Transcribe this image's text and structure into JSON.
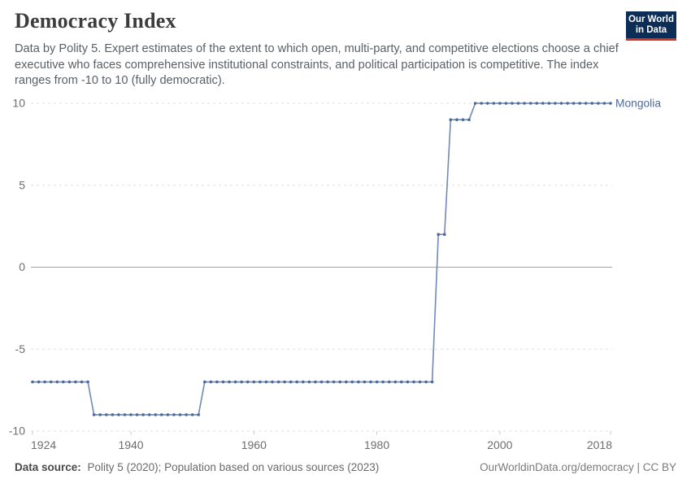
{
  "header": {
    "title": "Democracy Index",
    "subtitle": "Data by Polity 5. Expert estimates of the extent to which open, multi-party, and competitive elections choose a chief executive who faces comprehensive institutional constraints, and political participation is competitive. The index ranges from -10 to 10 (fully democratic).",
    "logo": {
      "line1": "Our World",
      "line2": "in Data"
    }
  },
  "footer": {
    "source_label": "Data source:",
    "source_text": "Polity 5 (2020); Population based on various sources (2023)",
    "credit": "OurWorldinData.org/democracy | CC BY"
  },
  "colors": {
    "series_blue": "#4C6A9C",
    "series_line": "#7189b3",
    "gridline": "#dedede",
    "zero_line": "#a3a3a3",
    "tick_mark": "#c9c9c9",
    "axis_label": "#6e6e6e",
    "logo_navy": "#0c2d55",
    "logo_red": "#d63420"
  },
  "chart_data": {
    "type": "line",
    "title": "Democracy Index",
    "xlabel": "",
    "ylabel": "",
    "xlim": [
      1924,
      2018
    ],
    "ylim": [
      -10,
      10
    ],
    "x_ticks": [
      1924,
      1940,
      1960,
      1980,
      2000,
      2018
    ],
    "y_ticks": [
      -10,
      -5,
      0,
      5,
      10
    ],
    "grid": "horizontal dashed gridlines; solid line at 0",
    "legend_position": "label at right end of line",
    "series": [
      {
        "name": "Mongolia",
        "color": "#4C6A9C",
        "segments": [
          {
            "from": 1924,
            "to": 1933,
            "value": -7
          },
          {
            "from": 1934,
            "to": 1951,
            "value": -9
          },
          {
            "from": 1952,
            "to": 1989,
            "value": -7
          },
          {
            "from": 1990,
            "to": 1991,
            "value": 2
          },
          {
            "from": 1992,
            "to": 1995,
            "value": 9
          },
          {
            "from": 1996,
            "to": 2018,
            "value": 10
          }
        ]
      }
    ]
  }
}
